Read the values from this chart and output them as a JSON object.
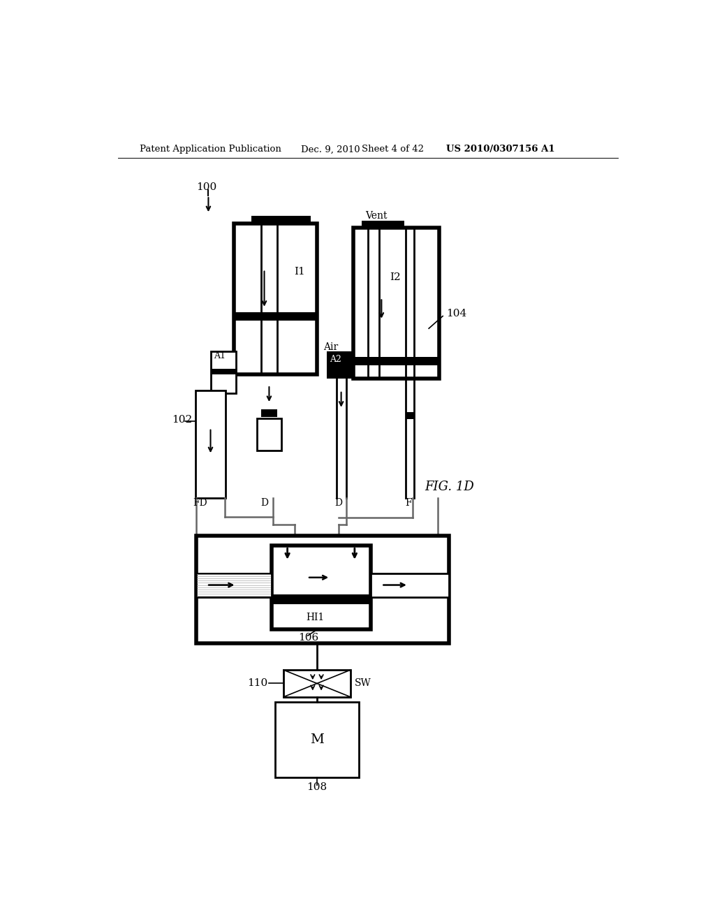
{
  "bg_color": "#ffffff",
  "header_text": "Patent Application Publication",
  "header_date": "Dec. 9, 2010",
  "header_sheet": "Sheet 4 of 42",
  "header_patent": "US 2010/0307156 A1",
  "fig_label": "FIG. 1D",
  "label_100": "100",
  "label_102": "102",
  "label_104": "104",
  "label_106": "106",
  "label_108": "108",
  "label_110": "110"
}
